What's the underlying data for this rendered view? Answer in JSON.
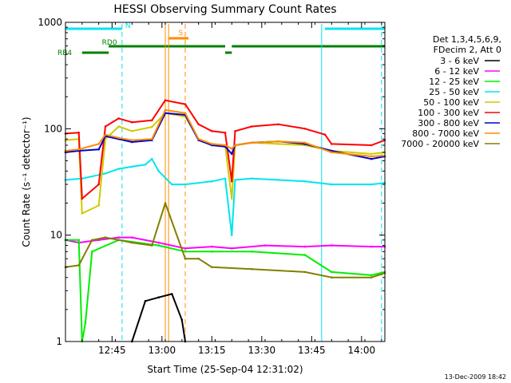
{
  "page": {
    "footer_timestamp": "13-Dec-2009 18:42"
  },
  "chart_data": {
    "type": "line",
    "title": "HESSI Observing Summary Count Rates",
    "xlabel": "Start Time (25-Sep-04 12:31:02)",
    "ylabel": "Count Rate (s⁻¹ detector⁻¹)",
    "x_unit": "minutes since 12:31:02",
    "x_range": [
      0,
      96
    ],
    "ylim": [
      1,
      1000
    ],
    "y_scale": "log",
    "x_ticks": [
      {
        "label": "12:45",
        "x": 14
      },
      {
        "label": "13:00",
        "x": 29
      },
      {
        "label": "13:15",
        "x": 44
      },
      {
        "label": "13:30",
        "x": 59
      },
      {
        "label": "13:45",
        "x": 74
      },
      {
        "label": "14:00",
        "x": 89
      }
    ],
    "y_ticks": [
      {
        "label": "1",
        "y": 1
      },
      {
        "label": "10",
        "y": 10
      },
      {
        "label": "100",
        "y": 100
      },
      {
        "label": "1000",
        "y": 1000
      }
    ],
    "legend_header": [
      "Det 1,3,4,5,6,9,",
      "FDecim 2, Att 0"
    ],
    "legend_placement": "right",
    "flag_bars": [
      {
        "label": "N",
        "color": "#00e5ee",
        "segments": [
          [
            0,
            17
          ],
          [
            78,
            96
          ]
        ]
      },
      {
        "label": "S",
        "color": "#ff8c00",
        "segments": [
          [
            31,
            37
          ]
        ]
      },
      {
        "label": "RD0",
        "color": "#008000",
        "segments": [
          [
            13,
            48
          ],
          [
            50,
            96
          ]
        ]
      },
      {
        "label": "RB4",
        "color": "#008000",
        "segments": [
          [
            5,
            13
          ],
          [
            48,
            50
          ]
        ]
      }
    ],
    "vlines": [
      {
        "x": 17,
        "color": "#00e5ee",
        "style": "dashed"
      },
      {
        "x": 77,
        "color": "#00e5ee",
        "style": "solid"
      },
      {
        "x": 95,
        "color": "#00e5ee",
        "style": "dashed"
      },
      {
        "x": 30,
        "color": "#ff8c00",
        "style": "solid"
      },
      {
        "x": 31,
        "color": "#ff8c00",
        "style": "solid"
      },
      {
        "x": 36,
        "color": "#ff8c00",
        "style": "dashed"
      }
    ],
    "series": [
      {
        "name": "3 - 6 keV",
        "color": "#000000",
        "points": [
          [
            20,
            1
          ],
          [
            24,
            2.4
          ],
          [
            28,
            2.6
          ],
          [
            32,
            2.8
          ],
          [
            35,
            1.6
          ],
          [
            36,
            1
          ]
        ]
      },
      {
        "name": "6 - 12 keV",
        "color": "#ff00ff",
        "points": [
          [
            0,
            9
          ],
          [
            4,
            8.5
          ],
          [
            10,
            9
          ],
          [
            16,
            9.5
          ],
          [
            20,
            9.5
          ],
          [
            28,
            8.5
          ],
          [
            36,
            7.5
          ],
          [
            44,
            7.8
          ],
          [
            50,
            7.5
          ],
          [
            60,
            8
          ],
          [
            72,
            7.8
          ],
          [
            80,
            8
          ],
          [
            92,
            7.8
          ],
          [
            96,
            7.8
          ]
        ]
      },
      {
        "name": "12 - 25 keV",
        "color": "#00ee00",
        "points": [
          [
            0,
            9
          ],
          [
            4,
            9
          ],
          [
            5,
            1
          ],
          [
            6,
            1.5
          ],
          [
            8,
            7
          ],
          [
            16,
            9
          ],
          [
            28,
            8
          ],
          [
            36,
            7
          ],
          [
            44,
            7
          ],
          [
            56,
            7
          ],
          [
            72,
            6.5
          ],
          [
            80,
            4.5
          ],
          [
            92,
            4.2
          ],
          [
            96,
            4.5
          ]
        ]
      },
      {
        "name": "25 - 50 keV",
        "color": "#00e5ee",
        "points": [
          [
            0,
            33
          ],
          [
            5,
            34
          ],
          [
            12,
            38
          ],
          [
            16,
            42
          ],
          [
            20,
            44
          ],
          [
            24,
            46
          ],
          [
            26,
            52
          ],
          [
            28,
            40
          ],
          [
            32,
            30
          ],
          [
            36,
            30
          ],
          [
            44,
            32
          ],
          [
            48,
            34
          ],
          [
            50,
            10
          ],
          [
            51,
            33
          ],
          [
            56,
            34
          ],
          [
            64,
            33
          ],
          [
            72,
            32
          ],
          [
            80,
            30
          ],
          [
            92,
            30
          ],
          [
            96,
            31
          ]
        ]
      },
      {
        "name": "50 - 100 keV",
        "color": "#cccc00",
        "points": [
          [
            0,
            78
          ],
          [
            4,
            80
          ],
          [
            5,
            16
          ],
          [
            10,
            19
          ],
          [
            12,
            80
          ],
          [
            16,
            105
          ],
          [
            20,
            95
          ],
          [
            26,
            104
          ],
          [
            30,
            140
          ],
          [
            36,
            130
          ],
          [
            40,
            80
          ],
          [
            44,
            72
          ],
          [
            48,
            70
          ],
          [
            50,
            22
          ],
          [
            51,
            70
          ],
          [
            56,
            74
          ],
          [
            64,
            72
          ],
          [
            72,
            70
          ],
          [
            80,
            62
          ],
          [
            92,
            58
          ],
          [
            96,
            60
          ]
        ]
      },
      {
        "name": "100 - 300 keV",
        "color": "#ff0000",
        "points": [
          [
            0,
            90
          ],
          [
            4,
            92
          ],
          [
            5,
            22
          ],
          [
            10,
            30
          ],
          [
            12,
            105
          ],
          [
            16,
            125
          ],
          [
            20,
            115
          ],
          [
            26,
            120
          ],
          [
            30,
            185
          ],
          [
            36,
            170
          ],
          [
            40,
            110
          ],
          [
            44,
            95
          ],
          [
            48,
            92
          ],
          [
            50,
            32
          ],
          [
            51,
            95
          ],
          [
            56,
            105
          ],
          [
            64,
            110
          ],
          [
            72,
            100
          ],
          [
            78,
            88
          ],
          [
            80,
            72
          ],
          [
            92,
            70
          ],
          [
            96,
            78
          ]
        ]
      },
      {
        "name": "300 - 800 keV",
        "color": "#0000cc",
        "points": [
          [
            0,
            60
          ],
          [
            4,
            62
          ],
          [
            10,
            64
          ],
          [
            12,
            85
          ],
          [
            16,
            80
          ],
          [
            20,
            75
          ],
          [
            26,
            78
          ],
          [
            30,
            140
          ],
          [
            36,
            135
          ],
          [
            40,
            78
          ],
          [
            44,
            70
          ],
          [
            48,
            68
          ],
          [
            50,
            58
          ],
          [
            51,
            70
          ],
          [
            56,
            74
          ],
          [
            64,
            76
          ],
          [
            72,
            72
          ],
          [
            80,
            62
          ],
          [
            92,
            52
          ],
          [
            96,
            55
          ]
        ]
      },
      {
        "name": "800 - 7000 keV",
        "color": "#ff8c00",
        "points": [
          [
            0,
            62
          ],
          [
            4,
            64
          ],
          [
            10,
            72
          ],
          [
            12,
            88
          ],
          [
            16,
            82
          ],
          [
            20,
            78
          ],
          [
            26,
            80
          ],
          [
            30,
            150
          ],
          [
            36,
            140
          ],
          [
            40,
            80
          ],
          [
            44,
            72
          ],
          [
            48,
            70
          ],
          [
            50,
            65
          ],
          [
            51,
            70
          ],
          [
            56,
            74
          ],
          [
            64,
            76
          ],
          [
            72,
            74
          ],
          [
            80,
            60
          ],
          [
            92,
            55
          ],
          [
            96,
            56
          ]
        ]
      },
      {
        "name": "7000 - 20000 keV",
        "color": "#808000",
        "points": [
          [
            0,
            5
          ],
          [
            4,
            5.2
          ],
          [
            8,
            9
          ],
          [
            12,
            9.5
          ],
          [
            16,
            9
          ],
          [
            20,
            8.5
          ],
          [
            26,
            8
          ],
          [
            30,
            20
          ],
          [
            36,
            6
          ],
          [
            40,
            6
          ],
          [
            44,
            5
          ],
          [
            56,
            4.8
          ],
          [
            72,
            4.5
          ],
          [
            80,
            4
          ],
          [
            92,
            4
          ],
          [
            96,
            4.4
          ]
        ]
      }
    ]
  }
}
